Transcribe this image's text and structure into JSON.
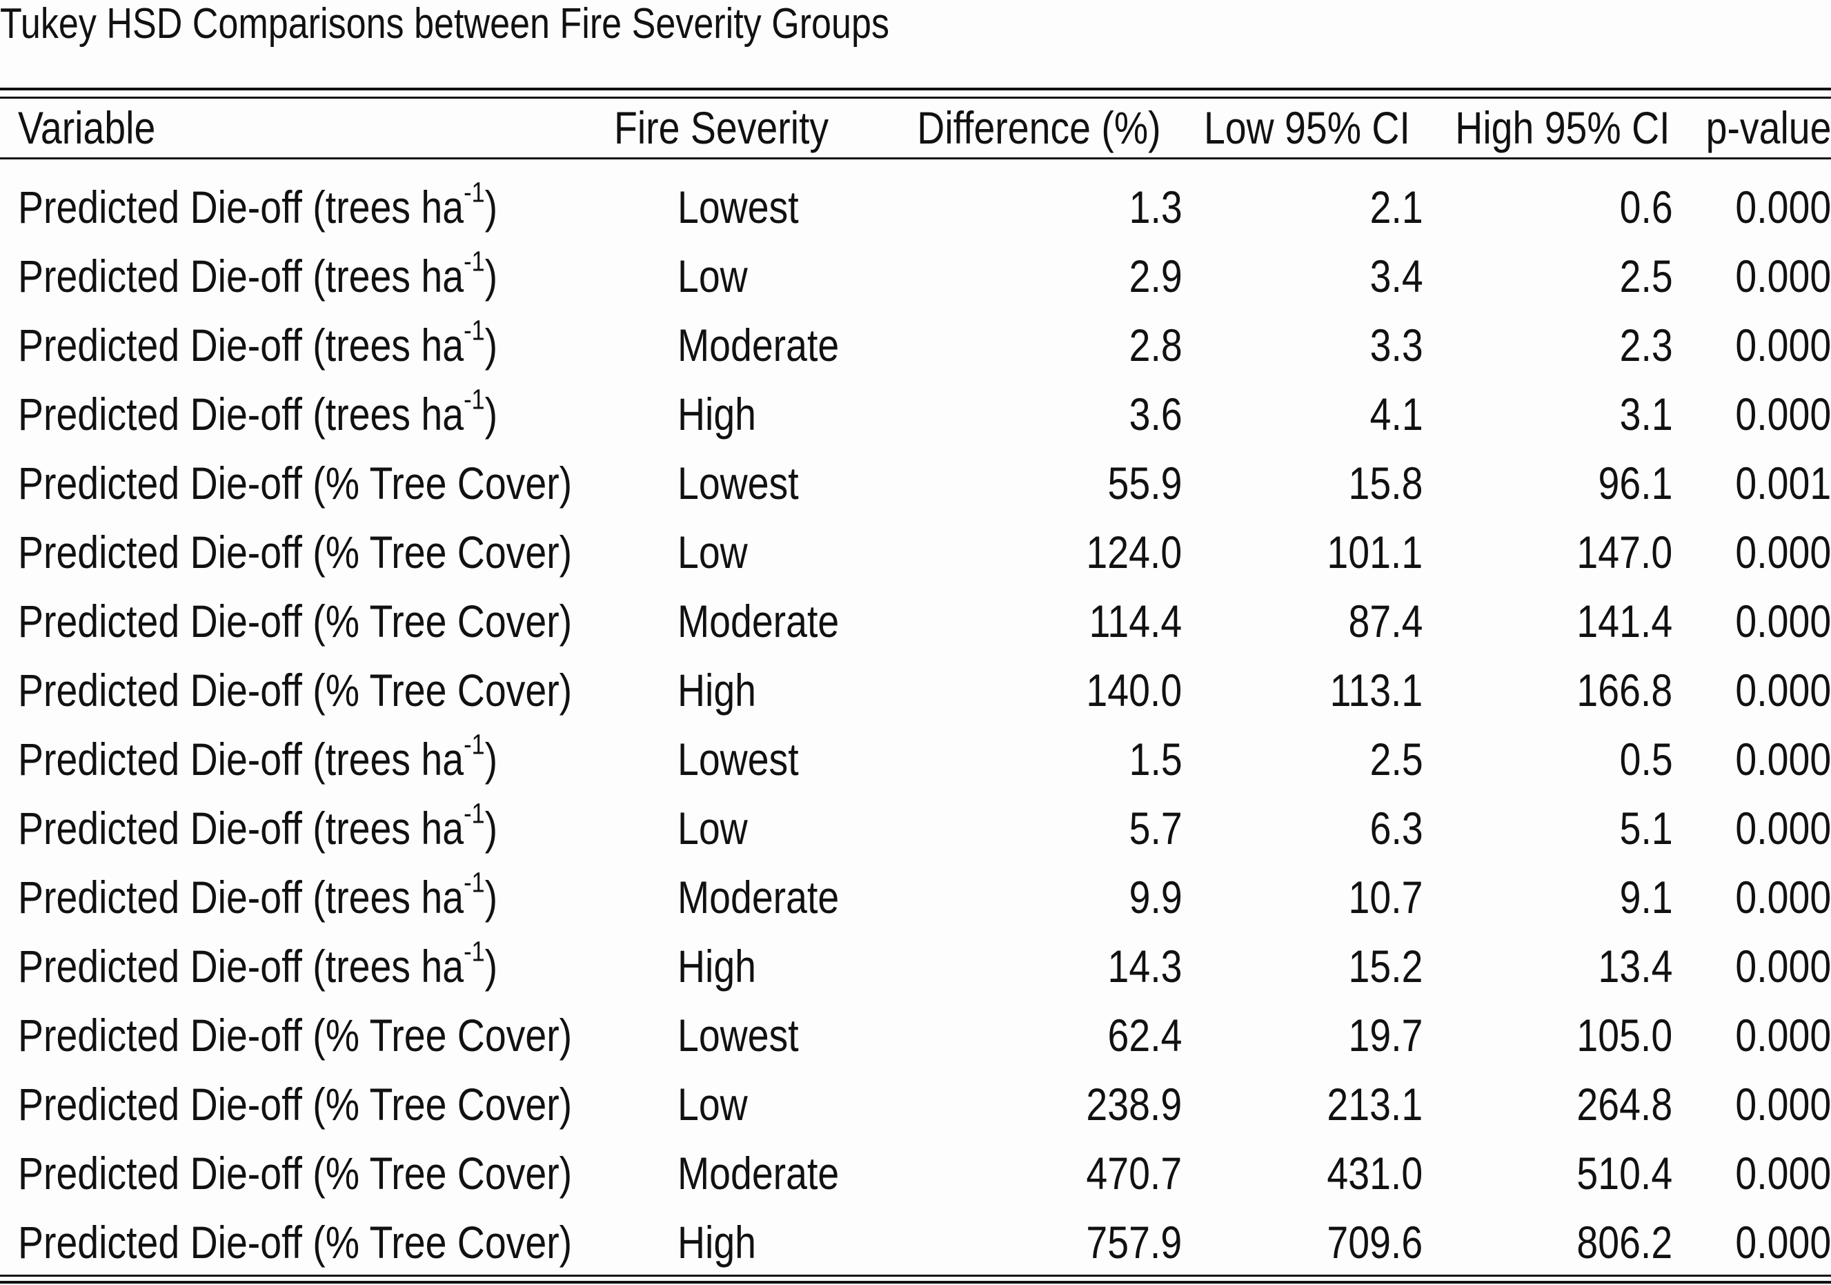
{
  "title": "Tukey HSD Comparisons between Fire Severity Groups",
  "columns": {
    "variable": "Variable",
    "severity": "Fire Severity",
    "difference": "Difference (%)",
    "low_ci": "Low 95% CI",
    "high_ci": "High 95% CI",
    "p_value": "p-value"
  },
  "variable_labels": {
    "trees_prefix": "Predicted Die-off (trees ha",
    "trees_exponent": "-1",
    "trees_suffix": ")",
    "cover": "Predicted Die-off (% Tree Cover)"
  },
  "rows": [
    {
      "unit": "trees",
      "severity": "Lowest",
      "difference": "1.3",
      "low_ci": "2.1",
      "high_ci": "0.6",
      "p_value": "0.000"
    },
    {
      "unit": "trees",
      "severity": "Low",
      "difference": "2.9",
      "low_ci": "3.4",
      "high_ci": "2.5",
      "p_value": "0.000"
    },
    {
      "unit": "trees",
      "severity": "Moderate",
      "difference": "2.8",
      "low_ci": "3.3",
      "high_ci": "2.3",
      "p_value": "0.000"
    },
    {
      "unit": "trees",
      "severity": "High",
      "difference": "3.6",
      "low_ci": "4.1",
      "high_ci": "3.1",
      "p_value": "0.000"
    },
    {
      "unit": "cover",
      "severity": "Lowest",
      "difference": "55.9",
      "low_ci": "15.8",
      "high_ci": "96.1",
      "p_value": "0.001"
    },
    {
      "unit": "cover",
      "severity": "Low",
      "difference": "124.0",
      "low_ci": "101.1",
      "high_ci": "147.0",
      "p_value": "0.000"
    },
    {
      "unit": "cover",
      "severity": "Moderate",
      "difference": "114.4",
      "low_ci": "87.4",
      "high_ci": "141.4",
      "p_value": "0.000"
    },
    {
      "unit": "cover",
      "severity": "High",
      "difference": "140.0",
      "low_ci": "113.1",
      "high_ci": "166.8",
      "p_value": "0.000"
    },
    {
      "unit": "trees",
      "severity": "Lowest",
      "difference": "1.5",
      "low_ci": "2.5",
      "high_ci": "0.5",
      "p_value": "0.000"
    },
    {
      "unit": "trees",
      "severity": "Low",
      "difference": "5.7",
      "low_ci": "6.3",
      "high_ci": "5.1",
      "p_value": "0.000"
    },
    {
      "unit": "trees",
      "severity": "Moderate",
      "difference": "9.9",
      "low_ci": "10.7",
      "high_ci": "9.1",
      "p_value": "0.000"
    },
    {
      "unit": "trees",
      "severity": "High",
      "difference": "14.3",
      "low_ci": "15.2",
      "high_ci": "13.4",
      "p_value": "0.000"
    },
    {
      "unit": "cover",
      "severity": "Lowest",
      "difference": "62.4",
      "low_ci": "19.7",
      "high_ci": "105.0",
      "p_value": "0.000"
    },
    {
      "unit": "cover",
      "severity": "Low",
      "difference": "238.9",
      "low_ci": "213.1",
      "high_ci": "264.8",
      "p_value": "0.000"
    },
    {
      "unit": "cover",
      "severity": "Moderate",
      "difference": "470.7",
      "low_ci": "431.0",
      "high_ci": "510.4",
      "p_value": "0.000"
    },
    {
      "unit": "cover",
      "severity": "High",
      "difference": "757.9",
      "low_ci": "709.6",
      "high_ci": "806.2",
      "p_value": "0.000"
    }
  ]
}
